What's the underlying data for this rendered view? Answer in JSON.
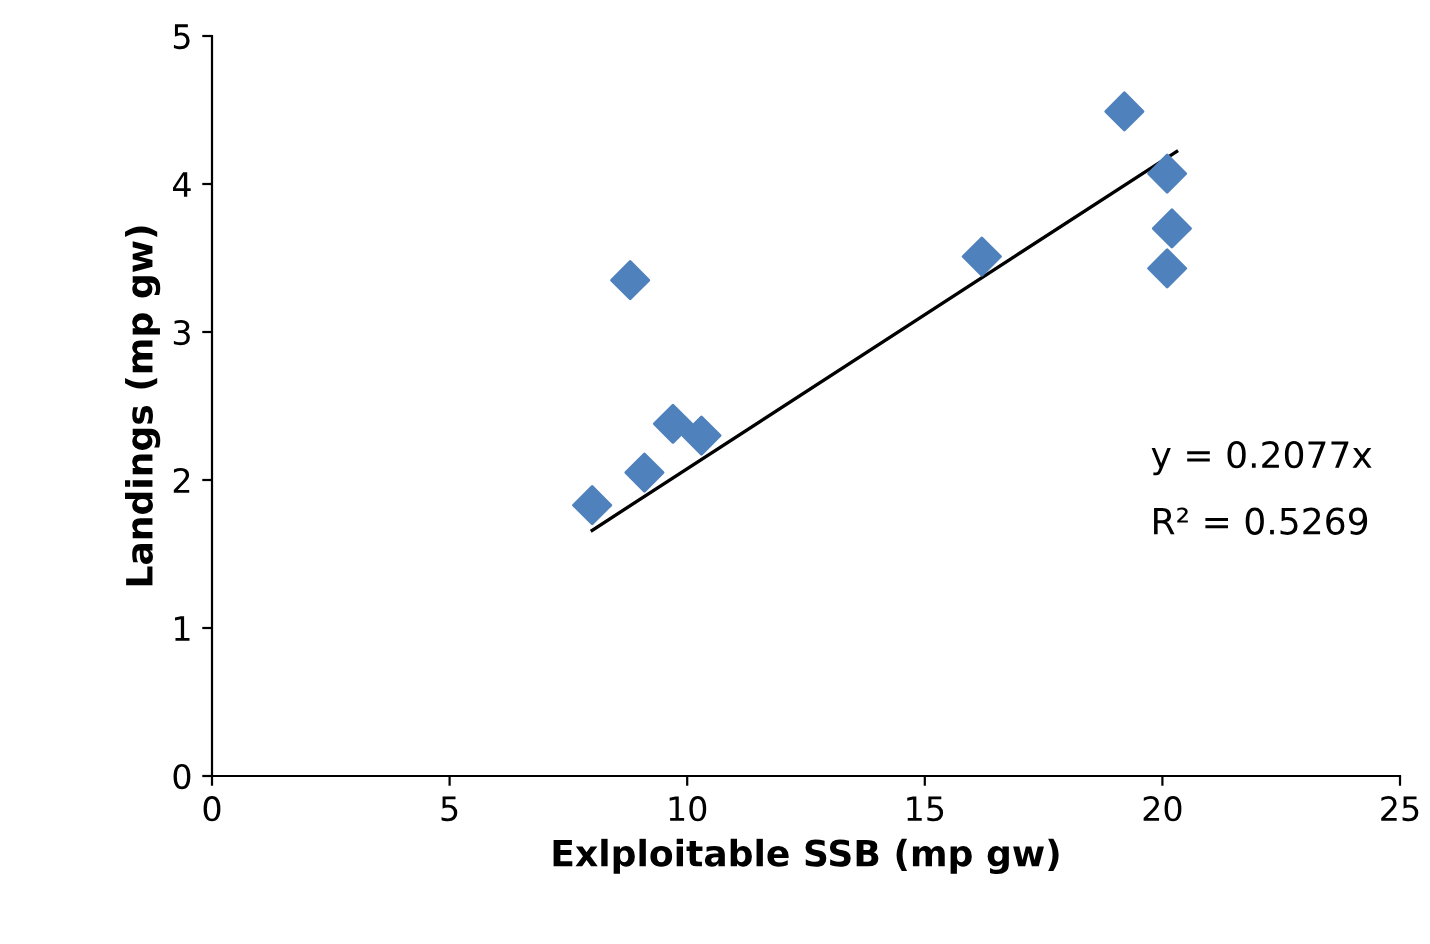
{
  "chart_data": {
    "type": "scatter",
    "xlabel": "Exlploitable SSB (mp gw)",
    "ylabel": "Landings (mp gw)",
    "xlim": [
      0,
      25
    ],
    "ylim": [
      0,
      5
    ],
    "xticks": [
      0,
      5,
      10,
      15,
      20,
      25
    ],
    "yticks": [
      0,
      1,
      2,
      3,
      4,
      5
    ],
    "grid": false,
    "legend": false,
    "marker": "diamond",
    "series": [
      {
        "color": "#4f81bd",
        "x": [
          8.0,
          8.8,
          9.1,
          9.7,
          10.3,
          16.2,
          19.2,
          20.1,
          20.2,
          20.1
        ],
        "values": [
          1.83,
          3.35,
          2.05,
          2.38,
          2.3,
          3.51,
          4.49,
          4.07,
          3.7,
          3.43
        ]
      },
      {
        "type": "line",
        "color": "#000000",
        "line_style": "solid",
        "marker": "none",
        "x": [
          8.0,
          20.3
        ],
        "values": [
          1.66,
          4.22
        ]
      }
    ],
    "annotations": [
      "y = 0.2077x",
      "R² = 0.5269"
    ]
  }
}
